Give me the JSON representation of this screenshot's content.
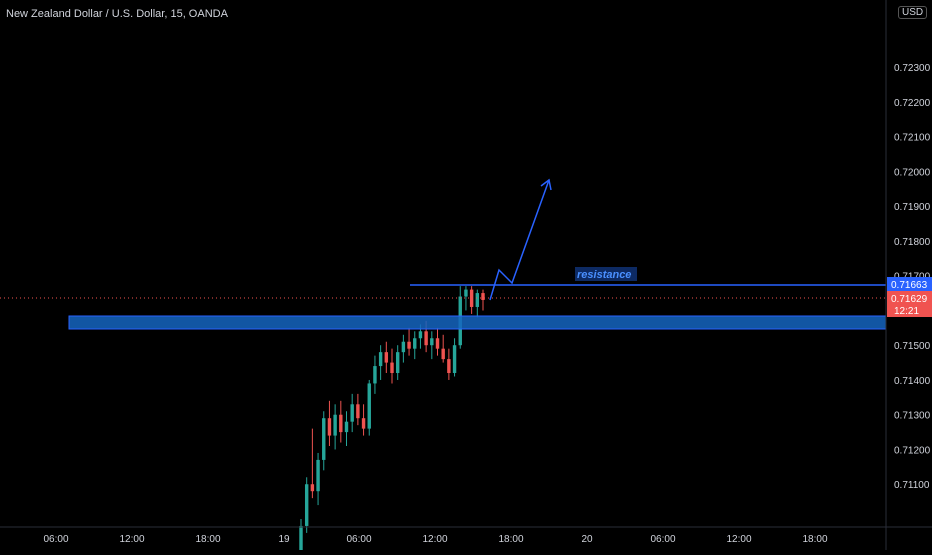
{
  "header": {
    "symbol_title": "New Zealand Dollar / U.S. Dollar, 15, OANDA",
    "currency": "USD"
  },
  "colors": {
    "background": "#000000",
    "up": "#26a69a",
    "down": "#ef5350",
    "drawing": "#2962ff",
    "zone_fill": "#1565c0",
    "text": "#d1d4dc",
    "last_price_label": "#f05350",
    "resistance_label_bg": "#2962ff"
  },
  "chart_data": {
    "type": "candlestick",
    "ylim": [
      0.71,
      0.7245
    ],
    "y_ticks": [
      "0.72300",
      "0.72200",
      "0.72100",
      "0.72000",
      "0.71900",
      "0.71800",
      "0.71700",
      "0.71500",
      "0.71400",
      "0.71300",
      "0.71200",
      "0.71100"
    ],
    "x_ticks": [
      "06:00",
      "12:00",
      "18:00",
      "19",
      "06:00",
      "12:00",
      "18:00",
      "20",
      "06:00",
      "12:00",
      "18:00"
    ],
    "price_labels": {
      "resistance_price": "0.71663",
      "last_price": "0.71629",
      "countdown": "12:21"
    },
    "annotations": {
      "resistance_text": "resistance",
      "resistance_level": 0.71663,
      "support_zone": [
        0.71545,
        0.71558
      ],
      "last_price": 0.71629
    },
    "candles": [
      {
        "o": 0.7086,
        "h": 0.71,
        "l": 0.7085,
        "c": 0.7098
      },
      {
        "o": 0.7098,
        "h": 0.7112,
        "l": 0.7096,
        "c": 0.711
      },
      {
        "o": 0.711,
        "h": 0.7126,
        "l": 0.7106,
        "c": 0.7108
      },
      {
        "o": 0.7108,
        "h": 0.7119,
        "l": 0.7104,
        "c": 0.7117
      },
      {
        "o": 0.7117,
        "h": 0.7131,
        "l": 0.7114,
        "c": 0.7129
      },
      {
        "o": 0.7129,
        "h": 0.7134,
        "l": 0.7121,
        "c": 0.7124
      },
      {
        "o": 0.7124,
        "h": 0.7133,
        "l": 0.712,
        "c": 0.713
      },
      {
        "o": 0.713,
        "h": 0.7134,
        "l": 0.7122,
        "c": 0.7125
      },
      {
        "o": 0.7125,
        "h": 0.7131,
        "l": 0.7121,
        "c": 0.7128
      },
      {
        "o": 0.7128,
        "h": 0.7136,
        "l": 0.7125,
        "c": 0.7133
      },
      {
        "o": 0.7133,
        "h": 0.7136,
        "l": 0.7127,
        "c": 0.7129
      },
      {
        "o": 0.7129,
        "h": 0.7133,
        "l": 0.7124,
        "c": 0.7126
      },
      {
        "o": 0.7126,
        "h": 0.714,
        "l": 0.7124,
        "c": 0.7139
      },
      {
        "o": 0.7139,
        "h": 0.7147,
        "l": 0.7136,
        "c": 0.7144
      },
      {
        "o": 0.7144,
        "h": 0.715,
        "l": 0.714,
        "c": 0.7148
      },
      {
        "o": 0.7148,
        "h": 0.7151,
        "l": 0.7142,
        "c": 0.7145
      },
      {
        "o": 0.7145,
        "h": 0.7149,
        "l": 0.7139,
        "c": 0.7142
      },
      {
        "o": 0.7142,
        "h": 0.715,
        "l": 0.714,
        "c": 0.7148
      },
      {
        "o": 0.7148,
        "h": 0.7153,
        "l": 0.7145,
        "c": 0.7151
      },
      {
        "o": 0.7151,
        "h": 0.7155,
        "l": 0.7147,
        "c": 0.7149
      },
      {
        "o": 0.7149,
        "h": 0.7154,
        "l": 0.7146,
        "c": 0.7152
      },
      {
        "o": 0.7152,
        "h": 0.7156,
        "l": 0.7149,
        "c": 0.7154
      },
      {
        "o": 0.7154,
        "h": 0.7157,
        "l": 0.7148,
        "c": 0.715
      },
      {
        "o": 0.715,
        "h": 0.7154,
        "l": 0.7146,
        "c": 0.7152
      },
      {
        "o": 0.7152,
        "h": 0.7155,
        "l": 0.7147,
        "c": 0.7149
      },
      {
        "o": 0.7149,
        "h": 0.7153,
        "l": 0.7145,
        "c": 0.7146
      },
      {
        "o": 0.7146,
        "h": 0.7149,
        "l": 0.714,
        "c": 0.7142
      },
      {
        "o": 0.7142,
        "h": 0.7152,
        "l": 0.7141,
        "c": 0.715
      },
      {
        "o": 0.715,
        "h": 0.7167,
        "l": 0.7149,
        "c": 0.7164
      },
      {
        "o": 0.7164,
        "h": 0.7167,
        "l": 0.716,
        "c": 0.7166
      },
      {
        "o": 0.7166,
        "h": 0.7167,
        "l": 0.7159,
        "c": 0.7161
      },
      {
        "o": 0.7161,
        "h": 0.7166,
        "l": 0.7158,
        "c": 0.7165
      },
      {
        "o": 0.7165,
        "h": 0.7166,
        "l": 0.716,
        "c": 0.7163
      }
    ]
  }
}
